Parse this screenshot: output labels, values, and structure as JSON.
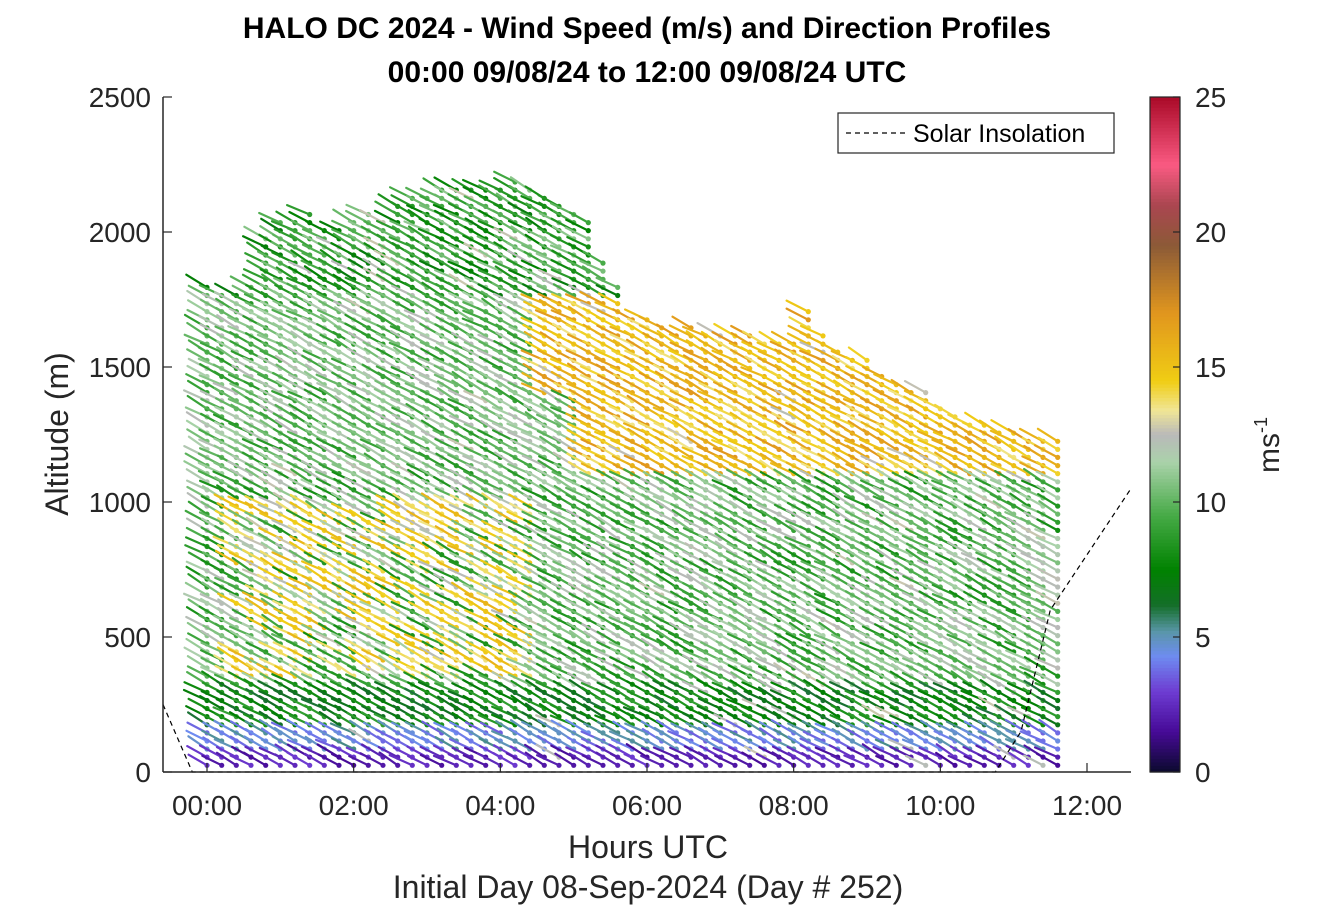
{
  "chart_data": {
    "type": "scatter",
    "title_line1": "HALO DC 2024 - Wind Speed (m/s) and Direction Profiles",
    "title_line2": "00:00 09/08/24 to 12:00 09/08/24  UTC",
    "xlabel": "Hours UTC",
    "subtitle": "Initial Day 08-Sep-2024 (Day # 252)",
    "ylabel": "Altitude (m)",
    "xlim_hours": [
      -0.6,
      12.6
    ],
    "ylim": [
      0,
      2500
    ],
    "x_ticks": [
      "00:00",
      "02:00",
      "04:00",
      "06:00",
      "08:00",
      "10:00",
      "12:00"
    ],
    "y_ticks": [
      "0",
      "500",
      "1000",
      "1500",
      "2000",
      "2500"
    ],
    "colorbar": {
      "label": "ms",
      "label_exponent": "-1",
      "range": [
        0,
        25
      ],
      "ticks": [
        "0",
        "5",
        "10",
        "15",
        "20",
        "25"
      ]
    },
    "legend": {
      "entry": "Solar Insolation",
      "position": "top-right"
    },
    "solar_insolation": {
      "hours": [
        -0.6,
        -0.2,
        -0.15,
        10.75,
        11.1,
        11.5,
        12.6
      ],
      "altitude": [
        250,
        0,
        0,
        0,
        150,
        600,
        1050
      ]
    },
    "profiles": {
      "start_hour": 0.0,
      "step_hours": 0.2,
      "count": 59,
      "top_altitude_m": [
        1800,
        1770,
        1790,
        1820,
        1990,
        2040,
        2060,
        2080,
        2020,
        2030,
        2060,
        2070,
        2060,
        2100,
        2130,
        2150,
        2180,
        2170,
        2180,
        2180,
        2180,
        2200,
        2170,
        2150,
        2120,
        2080,
        2060,
        1910,
        1810,
        1700,
        1680,
        1660,
        1640,
        1660,
        1630,
        1640,
        1630,
        1620,
        1610,
        1600,
        1600,
        1720,
        1640,
        1580,
        1550,
        1530,
        1480,
        1450,
        1430,
        1410,
        1360,
        1330,
        1300,
        1290,
        1270,
        1260,
        1250,
        1250,
        1240
      ],
      "vertical_spacing_m": 30,
      "typical_speed_ms": {
        "0-50m": 2,
        "50-150m": 5,
        "150-300m": 8,
        "300-1100m": 11,
        "1100-1700m": 14,
        "above-1700m": 9
      },
      "typical_direction": "northwest (barbs point southeast)"
    }
  },
  "colors": {
    "axis": "#262626",
    "insolation_line": "#000000"
  }
}
